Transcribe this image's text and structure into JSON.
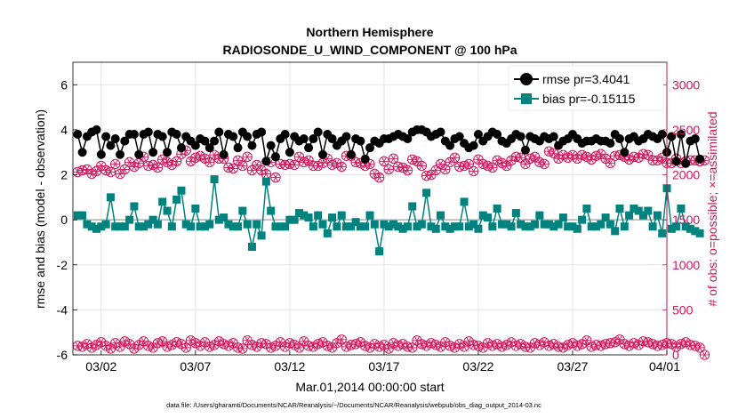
{
  "chart_data": {
    "type": "line",
    "title_line1": "Northern Hemisphere",
    "title_line2": "RADIOSONDE_U_WIND_COMPONENT @ 100 hPa",
    "xlabel": "Mar.01,2014 00:00:00 start",
    "ylabel_left": "rmse and bias (model - observation)",
    "ylabel_right": "# of obs: o=possible; ×=assimilated",
    "footnote": "data file: /Users/gharamti/Documents/NCAR/Reanalysis/~/Documents/NCAR/Reanalysis/webpub/obs_diag_output_2014-03.nc",
    "x_range": [
      0,
      31.5
    ],
    "x_ticks": [
      {
        "day": 1.5,
        "label": "03/02"
      },
      {
        "day": 6.5,
        "label": "03/07"
      },
      {
        "day": 11.5,
        "label": "03/12"
      },
      {
        "day": 16.5,
        "label": "03/17"
      },
      {
        "day": 21.5,
        "label": "03/22"
      },
      {
        "day": 26.5,
        "label": "03/27"
      },
      {
        "day": 31.5,
        "label": "04/01"
      }
    ],
    "y_left_range": [
      -6,
      7
    ],
    "y_left_ticks": [
      {
        "value": -6,
        "label": "-6"
      },
      {
        "value": -4,
        "label": "-4"
      },
      {
        "value": -2,
        "label": "-2"
      },
      {
        "value": 0,
        "label": "0"
      },
      {
        "value": 2,
        "label": "2"
      },
      {
        "value": 4,
        "label": "4"
      },
      {
        "value": 6,
        "label": "6"
      }
    ],
    "y_right_range": [
      0,
      3250
    ],
    "y_right_ticks": [
      {
        "value": 0,
        "label": "0"
      },
      {
        "value": 500,
        "label": "500"
      },
      {
        "value": 1000,
        "label": "1000"
      },
      {
        "value": 1500,
        "label": "1500"
      },
      {
        "value": 2000,
        "label": "2000"
      },
      {
        "value": 2500,
        "label": "2500"
      },
      {
        "value": 3000,
        "label": "3000"
      }
    ],
    "colors": {
      "rmse": "#000000",
      "bias": "#00827f",
      "obs": "#d4145a",
      "zero_line": "#b0b0b0",
      "grid": "#e6e6e6"
    },
    "series": [
      {
        "name": "rmse",
        "label": "rmse pr=3.4041",
        "start_day": 0.25,
        "step_days": 0.25,
        "values": [
          3.8,
          3.0,
          3.7,
          3.9,
          4.0,
          2.9,
          3.7,
          3.3,
          3.6,
          2.9,
          3.5,
          3.8,
          3.8,
          2.9,
          3.8,
          3.9,
          3.0,
          3.8,
          3.7,
          3.0,
          3.9,
          3.8,
          3.2,
          3.7,
          3.5,
          3.3,
          3.6,
          3.5,
          3.2,
          3.5,
          3.9,
          2.9,
          3.8,
          3.7,
          3.2,
          3.9,
          3.7,
          3.3,
          3.8,
          3.9,
          2.6,
          3.3,
          2.8,
          3.6,
          3.8,
          3.0,
          3.7,
          3.5,
          3.6,
          3.2,
          3.6,
          3.9,
          2.9,
          3.8,
          3.6,
          3.3,
          3.5,
          3.7,
          2.9,
          3.6,
          3.5,
          2.7,
          3.2,
          3.5,
          3.4,
          3.6,
          3.6,
          3.7,
          3.8,
          3.7,
          3.6,
          3.9,
          4.0,
          4.0,
          3.9,
          3.7,
          3.8,
          3.9,
          3.5,
          3.3,
          3.6,
          3.7,
          3.4,
          3.2,
          3.3,
          3.8,
          3.5,
          3.7,
          3.9,
          3.8,
          3.5,
          3.4,
          3.6,
          3.8,
          3.7,
          3.1,
          3.7,
          3.6,
          3.5,
          3.7,
          3.6,
          3.7,
          3.3,
          3.5,
          3.6,
          3.8,
          3.6,
          3.4,
          3.5,
          3.5,
          3.6,
          3.5,
          3.5,
          3.4,
          3.8,
          3.6,
          3.0,
          3.6,
          3.7,
          3.5,
          3.6,
          3.8,
          3.7,
          3.6,
          3.8,
          3.0,
          3.7,
          2.6,
          3.8,
          2.5,
          3.5,
          3.6,
          2.7
        ]
      },
      {
        "name": "bias",
        "label": "bias pr=-0.15115",
        "start_day": 0.25,
        "step_days": 0.25,
        "values": [
          0.2,
          0.2,
          -0.2,
          -0.3,
          -0.4,
          -0.3,
          -0.2,
          1.0,
          -0.3,
          -0.3,
          -0.3,
          0.0,
          0.6,
          -0.3,
          -0.3,
          -0.2,
          0.0,
          -0.2,
          0.8,
          0.4,
          -0.3,
          0.9,
          1.3,
          -0.2,
          -0.3,
          0.5,
          -0.3,
          -0.3,
          -0.2,
          1.8,
          0.0,
          0.1,
          -0.2,
          -0.3,
          -0.3,
          0.4,
          -0.2,
          -1.2,
          -0.2,
          -0.7,
          1.7,
          0.4,
          -0.3,
          -0.3,
          -0.3,
          0.0,
          0.0,
          0.3,
          0.2,
          0.1,
          -0.3,
          0.2,
          -0.2,
          -0.6,
          0.1,
          -0.3,
          0.2,
          -0.3,
          -0.3,
          -0.1,
          -0.3,
          -0.3,
          0.2,
          -0.2,
          -1.4,
          -0.2,
          -0.3,
          -0.2,
          -0.3,
          -0.4,
          -0.3,
          0.6,
          -0.3,
          -0.2,
          1.2,
          -0.3,
          -0.4,
          0.2,
          -0.3,
          -0.4,
          -0.3,
          -0.3,
          0.8,
          -0.3,
          -0.2,
          -0.4,
          0.2,
          0.1,
          -0.3,
          0.5,
          -0.2,
          -0.2,
          -0.3,
          0.3,
          -0.2,
          -0.3,
          -0.3,
          -0.2,
          0.2,
          -0.2,
          -0.2,
          -0.3,
          -0.2,
          0.1,
          -0.3,
          -0.3,
          -0.4,
          0.0,
          0.5,
          -0.3,
          -0.3,
          -0.2,
          0.1,
          -0.2,
          -0.5,
          0.5,
          -0.3,
          0.2,
          0.5,
          0.4,
          0.2,
          0.4,
          -0.3,
          0.2,
          -0.6,
          1.4,
          -0.4,
          -0.3,
          0.5,
          -0.3,
          -0.4,
          -0.5,
          -0.6
        ]
      },
      {
        "name": "obs_possible_upper",
        "label": "",
        "start_day": 0.25,
        "step_days": 0.25,
        "values": [
          2030,
          2050,
          2060,
          2010,
          2040,
          2100,
          2050,
          2030,
          2120,
          2010,
          2060,
          2140,
          2090,
          2130,
          2200,
          2100,
          2110,
          2080,
          2170,
          2140,
          2110,
          2150,
          2230,
          2270,
          2150,
          2190,
          2210,
          2180,
          2140,
          2220,
          2180,
          2180,
          2080,
          2070,
          2160,
          2100,
          2200,
          2050,
          2110,
          2050,
          2010,
          2140,
          1970,
          2120,
          2110,
          2120,
          2110,
          2200,
          2140,
          2160,
          2100,
          2100,
          2130,
          2180,
          2110,
          2130,
          2090,
          2210,
          2210,
          2140,
          2130,
          2100,
          2120,
          2010,
          1970,
          2150,
          2060,
          2180,
          2090,
          2080,
          2050,
          2170,
          2150,
          2100,
          1990,
          2000,
          2050,
          2120,
          2060,
          2140,
          2190,
          2090,
          2100,
          2120,
          2040,
          2170,
          2120,
          2100,
          2080,
          2160,
          2130,
          2100,
          2160,
          2200,
          2190,
          2120,
          2180,
          2200,
          2140,
          2120,
          2260,
          2240,
          2180,
          2220,
          2190,
          2220,
          2180,
          2220,
          2200,
          2170,
          2210,
          2230,
          2180,
          2130,
          2210,
          2220,
          2200,
          2170,
          2200,
          2190,
          2230,
          2220,
          2160,
          2160,
          2190,
          2130,
          2130,
          2180,
          2130,
          2150,
          2160,
          2160,
          2150,
          2160
        ]
      },
      {
        "name": "obs_possible_lower",
        "label": "",
        "start_day": 0.25,
        "step_days": 0.25,
        "values": [
          100,
          90,
          120,
          80,
          110,
          140,
          100,
          70,
          130,
          90,
          150,
          120,
          70,
          110,
          150,
          100,
          80,
          130,
          150,
          90,
          110,
          140,
          120,
          80,
          160,
          130,
          100,
          140,
          90,
          110,
          150,
          120,
          100,
          130,
          80,
          70,
          160,
          110,
          90,
          130,
          120,
          80,
          100,
          140,
          90,
          130,
          110,
          80,
          150,
          100,
          90,
          120,
          140,
          100,
          80,
          130,
          170,
          90,
          110,
          120,
          140,
          100,
          80,
          120,
          90,
          110,
          70,
          130,
          100,
          120,
          90,
          80,
          160,
          120,
          100,
          130,
          110,
          90,
          140,
          100,
          80,
          120,
          90,
          150,
          110,
          100,
          80,
          130,
          100,
          120,
          90,
          110,
          140,
          100,
          120,
          90,
          80,
          130,
          110,
          140,
          100,
          120,
          90,
          80,
          110,
          130,
          100,
          120,
          160,
          90,
          110,
          100,
          120,
          130,
          140,
          170,
          120,
          100,
          130,
          110,
          150,
          140,
          120,
          100,
          110,
          130,
          120,
          90,
          120,
          140,
          110,
          100,
          80,
          0
        ]
      }
    ]
  }
}
